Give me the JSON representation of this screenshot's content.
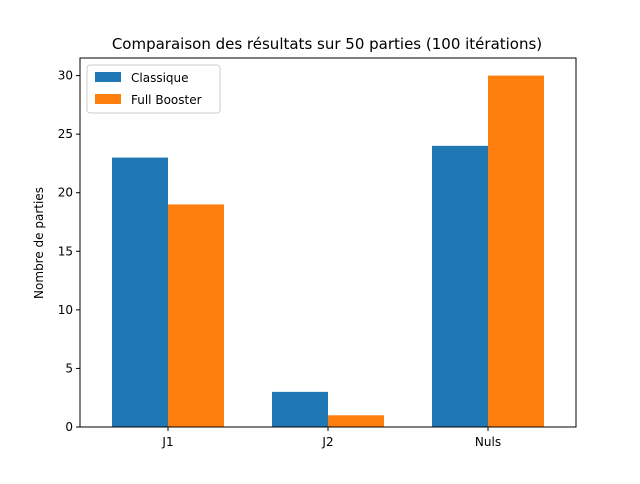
{
  "chart_data": {
    "type": "bar",
    "title": "Comparaison des résultats sur 50 parties (100 itérations)",
    "xlabel": "",
    "ylabel": "Nombre de parties",
    "categories": [
      "J1",
      "J2",
      "Nuls"
    ],
    "series": [
      {
        "name": "Classique",
        "values": [
          23,
          3,
          24
        ],
        "color": "#1f77b4"
      },
      {
        "name": "Full Booster",
        "values": [
          19,
          1,
          30
        ],
        "color": "#ff7f0e"
      }
    ],
    "ylim": [
      0,
      31.5
    ],
    "yticks": [
      0,
      5,
      10,
      15,
      20,
      25,
      30
    ],
    "grid": false,
    "legend_position": "top-left"
  }
}
